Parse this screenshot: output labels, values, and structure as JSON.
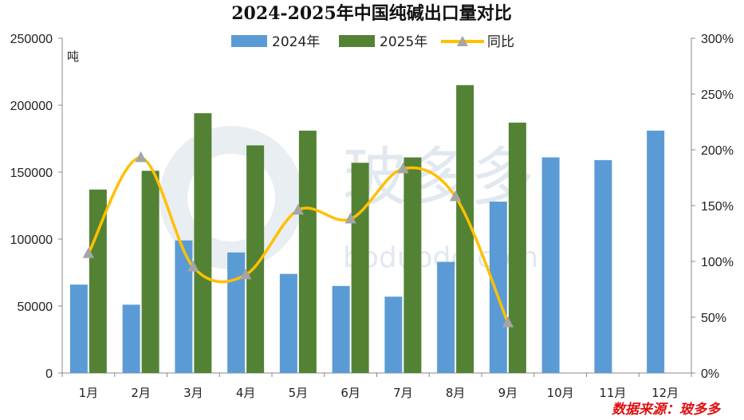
{
  "chart_data": {
    "type": "bar",
    "title": "2024-2025年中国纯碱出口量对比",
    "unit_label": "吨",
    "categories": [
      "1月",
      "2月",
      "3月",
      "4月",
      "5月",
      "6月",
      "7月",
      "8月",
      "9月",
      "10月",
      "11月",
      "12月"
    ],
    "series": [
      {
        "name": "2024年",
        "type": "bar",
        "axis": "left",
        "color": "#5b9bd5",
        "values": [
          66000,
          51000,
          99000,
          90000,
          74000,
          65000,
          57000,
          83000,
          128000,
          161000,
          159000,
          181000
        ]
      },
      {
        "name": "2025年",
        "type": "bar",
        "axis": "left",
        "color": "#548235",
        "values": [
          137000,
          151000,
          194000,
          170000,
          181000,
          157000,
          161000,
          215000,
          187000,
          null,
          null,
          null
        ]
      },
      {
        "name": "同比",
        "type": "line",
        "axis": "right",
        "color": "#ffc000",
        "marker_color": "#a5a5a5",
        "values": [
          107,
          193,
          95,
          88,
          146,
          138,
          183,
          158,
          45,
          null,
          null,
          null
        ]
      }
    ],
    "y_left": {
      "min": 0,
      "max": 250000,
      "step": 50000,
      "ticks": [
        "0",
        "50000",
        "100000",
        "150000",
        "200000",
        "250000"
      ]
    },
    "y_right": {
      "min": 0,
      "max": 300,
      "step": 50,
      "unit": "%",
      "ticks": [
        "0%",
        "50%",
        "100%",
        "150%",
        "200%",
        "250%",
        "300%"
      ]
    },
    "grid": false,
    "legend_position": "top"
  },
  "source_text": "数据来源：玻多多",
  "watermark": {
    "text": "玻多多",
    "url_text": "boduodo.com"
  }
}
